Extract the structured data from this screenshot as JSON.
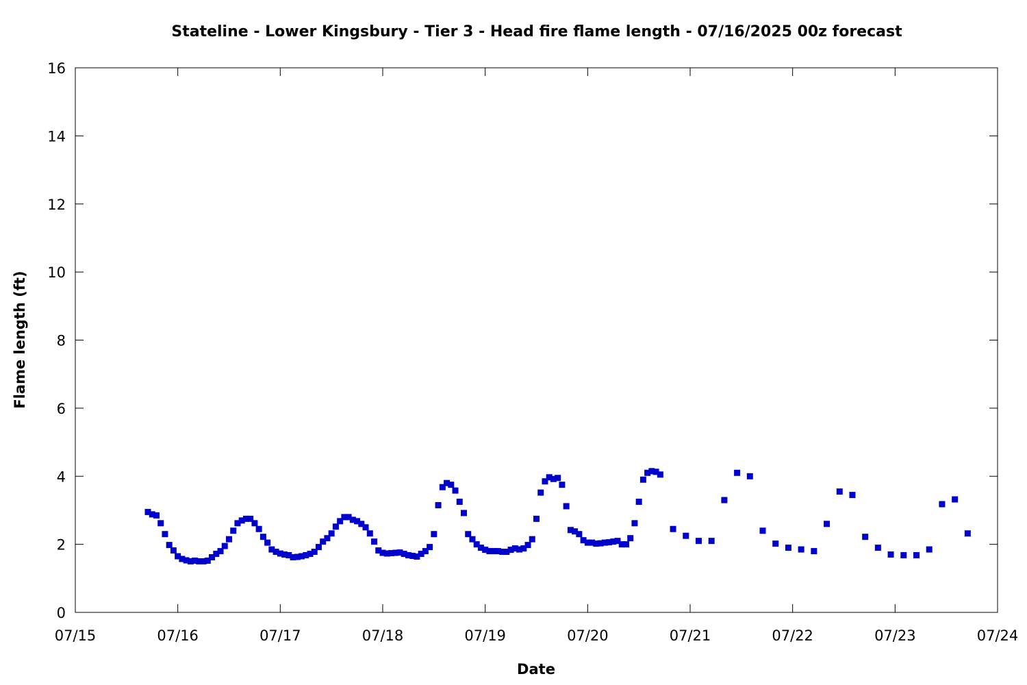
{
  "chart_data": {
    "type": "scatter",
    "title": "Stateline - Lower Kingsbury - Tier 3 - Head fire flame length - 07/16/2025 00z forecast",
    "xlabel": "Date",
    "ylabel": "Flame length (ft)",
    "xlim": [
      "2025-07-15T00:00",
      "2025-07-24T00:00"
    ],
    "ylim": [
      0,
      16
    ],
    "x_tick_labels": [
      "07/15",
      "07/16",
      "07/17",
      "07/18",
      "07/19",
      "07/20",
      "07/21",
      "07/22",
      "07/23",
      "07/24"
    ],
    "y_tick_labels": [
      "0",
      "2",
      "4",
      "6",
      "8",
      "10",
      "12",
      "14",
      "16"
    ],
    "y_ticks": [
      0,
      2,
      4,
      6,
      8,
      10,
      12,
      14,
      16
    ],
    "grid": false,
    "marker_color": "#0000cc",
    "series": [
      {
        "x": [
          "2025-07-15T17:00",
          "2025-07-15T18:00",
          "2025-07-15T19:00",
          "2025-07-15T20:00",
          "2025-07-15T21:00",
          "2025-07-15T22:00",
          "2025-07-15T23:00",
          "2025-07-16T00:00",
          "2025-07-16T01:00",
          "2025-07-16T02:00",
          "2025-07-16T03:00",
          "2025-07-16T04:00",
          "2025-07-16T05:00",
          "2025-07-16T06:00",
          "2025-07-16T07:00",
          "2025-07-16T08:00",
          "2025-07-16T09:00",
          "2025-07-16T10:00",
          "2025-07-16T11:00",
          "2025-07-16T12:00",
          "2025-07-16T13:00",
          "2025-07-16T14:00",
          "2025-07-16T15:00",
          "2025-07-16T16:00",
          "2025-07-16T17:00",
          "2025-07-16T18:00",
          "2025-07-16T19:00",
          "2025-07-16T20:00",
          "2025-07-16T21:00",
          "2025-07-16T22:00",
          "2025-07-16T23:00",
          "2025-07-17T00:00",
          "2025-07-17T01:00",
          "2025-07-17T02:00",
          "2025-07-17T03:00",
          "2025-07-17T04:00",
          "2025-07-17T05:00",
          "2025-07-17T06:00",
          "2025-07-17T07:00",
          "2025-07-17T08:00",
          "2025-07-17T09:00",
          "2025-07-17T10:00",
          "2025-07-17T11:00",
          "2025-07-17T12:00",
          "2025-07-17T13:00",
          "2025-07-17T14:00",
          "2025-07-17T15:00",
          "2025-07-17T16:00",
          "2025-07-17T17:00",
          "2025-07-17T18:00",
          "2025-07-17T19:00",
          "2025-07-17T20:00",
          "2025-07-17T21:00",
          "2025-07-17T22:00",
          "2025-07-17T23:00",
          "2025-07-18T00:00",
          "2025-07-18T01:00",
          "2025-07-18T02:00",
          "2025-07-18T03:00",
          "2025-07-18T04:00",
          "2025-07-18T05:00",
          "2025-07-18T06:00",
          "2025-07-18T07:00",
          "2025-07-18T08:00",
          "2025-07-18T09:00",
          "2025-07-18T10:00",
          "2025-07-18T11:00",
          "2025-07-18T12:00",
          "2025-07-18T13:00",
          "2025-07-18T14:00",
          "2025-07-18T15:00",
          "2025-07-18T16:00",
          "2025-07-18T17:00",
          "2025-07-18T18:00",
          "2025-07-18T19:00",
          "2025-07-18T20:00",
          "2025-07-18T21:00",
          "2025-07-18T22:00",
          "2025-07-18T23:00",
          "2025-07-19T00:00",
          "2025-07-19T01:00",
          "2025-07-19T02:00",
          "2025-07-19T03:00",
          "2025-07-19T04:00",
          "2025-07-19T05:00",
          "2025-07-19T06:00",
          "2025-07-19T07:00",
          "2025-07-19T08:00",
          "2025-07-19T09:00",
          "2025-07-19T10:00",
          "2025-07-19T11:00",
          "2025-07-19T12:00",
          "2025-07-19T13:00",
          "2025-07-19T14:00",
          "2025-07-19T15:00",
          "2025-07-19T16:00",
          "2025-07-19T17:00",
          "2025-07-19T18:00",
          "2025-07-19T19:00",
          "2025-07-19T20:00",
          "2025-07-19T21:00",
          "2025-07-19T22:00",
          "2025-07-19T23:00",
          "2025-07-20T00:00",
          "2025-07-20T01:00",
          "2025-07-20T02:00",
          "2025-07-20T03:00",
          "2025-07-20T04:00",
          "2025-07-20T05:00",
          "2025-07-20T06:00",
          "2025-07-20T07:00",
          "2025-07-20T08:00",
          "2025-07-20T09:00",
          "2025-07-20T10:00",
          "2025-07-20T11:00",
          "2025-07-20T12:00",
          "2025-07-20T13:00",
          "2025-07-20T14:00",
          "2025-07-20T15:00",
          "2025-07-20T16:00",
          "2025-07-20T17:00",
          "2025-07-20T20:00",
          "2025-07-20T23:00",
          "2025-07-21T02:00",
          "2025-07-21T05:00",
          "2025-07-21T08:00",
          "2025-07-21T11:00",
          "2025-07-21T14:00",
          "2025-07-21T17:00",
          "2025-07-21T20:00",
          "2025-07-21T23:00",
          "2025-07-22T02:00",
          "2025-07-22T05:00",
          "2025-07-22T08:00",
          "2025-07-22T11:00",
          "2025-07-22T14:00",
          "2025-07-22T17:00",
          "2025-07-22T20:00",
          "2025-07-22T23:00",
          "2025-07-23T02:00",
          "2025-07-23T05:00",
          "2025-07-23T08:00",
          "2025-07-23T11:00",
          "2025-07-23T14:00",
          "2025-07-23T17:00"
        ],
        "y": [
          2.95,
          2.88,
          2.85,
          2.62,
          2.3,
          1.98,
          1.82,
          1.65,
          1.57,
          1.53,
          1.5,
          1.52,
          1.5,
          1.5,
          1.52,
          1.62,
          1.72,
          1.8,
          1.95,
          2.15,
          2.4,
          2.62,
          2.7,
          2.75,
          2.75,
          2.62,
          2.45,
          2.22,
          2.05,
          1.85,
          1.78,
          1.73,
          1.7,
          1.68,
          1.62,
          1.63,
          1.65,
          1.68,
          1.72,
          1.78,
          1.92,
          2.08,
          2.18,
          2.32,
          2.52,
          2.68,
          2.8,
          2.8,
          2.72,
          2.68,
          2.6,
          2.5,
          2.32,
          2.08,
          1.82,
          1.75,
          1.73,
          1.74,
          1.75,
          1.76,
          1.72,
          1.68,
          1.66,
          1.64,
          1.72,
          1.8,
          1.92,
          2.3,
          3.15,
          3.68,
          3.8,
          3.75,
          3.58,
          3.25,
          2.92,
          2.3,
          2.15,
          2.0,
          1.9,
          1.84,
          1.8,
          1.8,
          1.8,
          1.78,
          1.78,
          1.84,
          1.88,
          1.85,
          1.88,
          1.98,
          2.15,
          2.75,
          3.52,
          3.85,
          3.97,
          3.92,
          3.95,
          3.75,
          3.12,
          2.42,
          2.38,
          2.3,
          2.12,
          2.05,
          2.05,
          2.02,
          2.03,
          2.05,
          2.06,
          2.08,
          2.1,
          2.0,
          2.0,
          2.18,
          2.62,
          3.25,
          3.9,
          4.1,
          4.15,
          4.13,
          4.05,
          2.45,
          2.25,
          2.1,
          2.1,
          3.3,
          4.1,
          4.0,
          2.4,
          2.02,
          1.9,
          1.85,
          1.8,
          2.6,
          3.55,
          3.45,
          2.22,
          1.9,
          1.7,
          1.68,
          1.68,
          1.85,
          3.18,
          3.32,
          2.32
        ]
      }
    ]
  }
}
